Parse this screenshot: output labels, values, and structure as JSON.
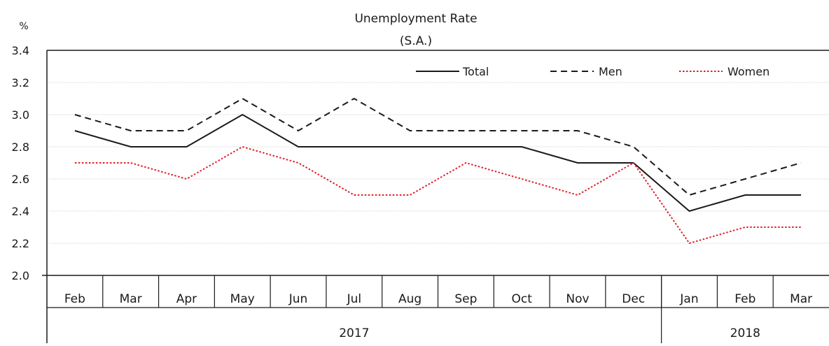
{
  "chart_data": {
    "type": "line",
    "title": "Unemployment Rate",
    "subtitle": "(S.A.)",
    "ylabel": "%",
    "ylim": [
      2.0,
      3.4
    ],
    "yticks": [
      "2.0",
      "2.2",
      "2.4",
      "2.6",
      "2.8",
      "3.0",
      "3.2",
      "3.4"
    ],
    "grid": true,
    "legend_position": "top-right",
    "categories": [
      "Feb",
      "Mar",
      "Apr",
      "May",
      "Jun",
      "Jul",
      "Aug",
      "Sep",
      "Oct",
      "Nov",
      "Dec",
      "Jan",
      "Feb",
      "Mar"
    ],
    "year_groups": [
      {
        "label": "2017",
        "count": 11
      },
      {
        "label": "2018",
        "count": 3
      }
    ],
    "series": [
      {
        "name": "Total",
        "color": "#1a1a1a",
        "dash": "solid",
        "values": [
          2.9,
          2.8,
          2.8,
          3.0,
          2.8,
          2.8,
          2.8,
          2.8,
          2.8,
          2.7,
          2.7,
          2.4,
          2.5,
          2.5
        ]
      },
      {
        "name": "Men",
        "color": "#1a1a1a",
        "dash": "dashed",
        "values": [
          3.0,
          2.9,
          2.9,
          3.1,
          2.9,
          3.1,
          2.9,
          2.9,
          2.9,
          2.9,
          2.8,
          2.5,
          2.6,
          2.7
        ]
      },
      {
        "name": "Women",
        "color": "#e0202a",
        "dash": "dotted",
        "values": [
          2.7,
          2.7,
          2.6,
          2.8,
          2.7,
          2.5,
          2.5,
          2.7,
          2.6,
          2.5,
          2.7,
          2.2,
          2.3,
          2.3
        ]
      }
    ]
  }
}
